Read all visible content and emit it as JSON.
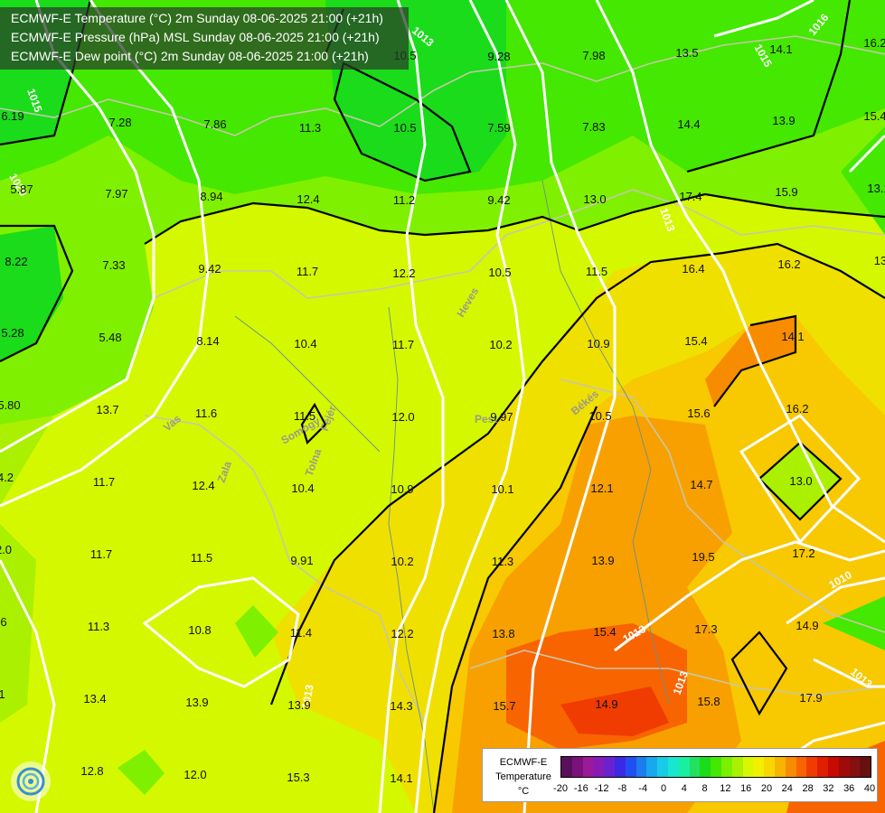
{
  "header": {
    "line1": "ECMWF-E Temperature (°C) 2m Sunday 08-06-2025 21:00 (+21h)",
    "line2": "ECMWF-E Pressure (hPa) MSL Sunday 08-06-2025 21:00 (+21h)",
    "line3": "ECMWF-E Dew point (°C) 2m Sunday 08-06-2025 21:00 (+21h)"
  },
  "legend": {
    "title_lines": [
      "ECMWF-E",
      "Temperature",
      "°C"
    ],
    "ticks": [
      "-20",
      "-16",
      "-12",
      "-8",
      "-4",
      "0",
      "4",
      "8",
      "12",
      "16",
      "20",
      "24",
      "28",
      "32",
      "36",
      "40"
    ],
    "colors": [
      "#5a0f5a",
      "#7a127a",
      "#9a1a9a",
      "#8a1ab4",
      "#6a22d0",
      "#3a2ae6",
      "#2050f0",
      "#1e7cf0",
      "#18a8ee",
      "#18cce8",
      "#18e6d0",
      "#18f0a0",
      "#22e060",
      "#1adc1a",
      "#44e800",
      "#7af000",
      "#aaf000",
      "#d8f800",
      "#f0f000",
      "#f8d800",
      "#f8b400",
      "#f88c00",
      "#f86400",
      "#f03c00",
      "#e01e00",
      "#c80a00",
      "#a00a0a",
      "#841010",
      "#681010"
    ]
  },
  "values": [
    {
      "t": "7.28"
    },
    {
      "t": "7.86"
    },
    {
      "t": "11.3"
    },
    {
      "t": "10.5"
    },
    {
      "t": "7.59"
    },
    {
      "t": "7.83"
    },
    {
      "t": "14.4"
    },
    {
      "t": "13.9"
    },
    {
      "t": "10.5"
    },
    {
      "t": "9.28"
    },
    {
      "t": "7.98"
    },
    {
      "t": "13.5"
    },
    {
      "t": "14.1"
    },
    {
      "t": "16.2"
    },
    {
      "t": "5.87"
    },
    {
      "t": "7.97"
    },
    {
      "t": "8.94"
    },
    {
      "t": "12.4"
    },
    {
      "t": "11.2"
    },
    {
      "t": "9.42"
    },
    {
      "t": "13.0"
    },
    {
      "t": "17.4"
    },
    {
      "t": "15.9"
    },
    {
      "t": "8.22"
    },
    {
      "t": "7.33"
    },
    {
      "t": "9.42"
    },
    {
      "t": "11.7"
    },
    {
      "t": "12.2"
    },
    {
      "t": "10.5"
    },
    {
      "t": "11.5"
    },
    {
      "t": "16.4"
    },
    {
      "t": "16.2"
    },
    {
      "t": "5.28"
    },
    {
      "t": "5.48"
    },
    {
      "t": "8.14"
    },
    {
      "t": "10.4"
    },
    {
      "t": "11.7"
    },
    {
      "t": "10.2"
    },
    {
      "t": "10.9"
    },
    {
      "t": "15.4"
    },
    {
      "t": "14.1"
    },
    {
      "t": "13.7"
    },
    {
      "t": "11.6"
    },
    {
      "t": "11.5"
    },
    {
      "t": "12.0"
    },
    {
      "t": "9.97"
    },
    {
      "t": "10.5"
    },
    {
      "t": "15.6"
    },
    {
      "t": "16.2"
    },
    {
      "t": "11.7"
    },
    {
      "t": "12.4"
    },
    {
      "t": "10.4"
    },
    {
      "t": "10.9"
    },
    {
      "t": "10.1"
    },
    {
      "t": "12.1"
    },
    {
      "t": "14.7"
    },
    {
      "t": "13.0"
    },
    {
      "t": "11.7"
    },
    {
      "t": "11.5"
    },
    {
      "t": "9.91"
    },
    {
      "t": "10.2"
    },
    {
      "t": "11.3"
    },
    {
      "t": "13.9"
    },
    {
      "t": "19.5"
    },
    {
      "t": "17.2"
    },
    {
      "t": "11.3"
    },
    {
      "t": "10.8"
    },
    {
      "t": "11.4"
    },
    {
      "t": "12.2"
    },
    {
      "t": "13.8"
    },
    {
      "t": "15.4"
    },
    {
      "t": "17.3"
    },
    {
      "t": "14.9"
    },
    {
      "t": "13.4"
    },
    {
      "t": "13.9"
    },
    {
      "t": "13.9"
    },
    {
      "t": "14.3"
    },
    {
      "t": "15.7"
    },
    {
      "t": "14.9"
    },
    {
      "t": "15.8"
    },
    {
      "t": "17.9"
    },
    {
      "t": "12.8"
    },
    {
      "t": "12.0"
    },
    {
      "t": "15.3"
    },
    {
      "t": "14.1"
    },
    {
      "t": "6.19"
    },
    {
      "t": "5.80"
    },
    {
      "t": "4.2"
    },
    {
      "t": "2.0"
    },
    {
      "t": "6"
    },
    {
      "t": "1"
    },
    {
      "t": "15.4"
    },
    {
      "t": "13.1"
    },
    {
      "t": "13"
    }
  ],
  "isobar_labels": [
    "1015",
    "1020",
    "1013",
    "1013",
    "1013",
    "1015",
    "1013",
    "1010",
    "1016",
    "1013",
    "1013"
  ],
  "region_labels": [
    "Heves",
    "Pest",
    "Békés",
    "Vas",
    "Zala",
    "Tolna",
    "Fejér",
    "Somogy"
  ]
}
